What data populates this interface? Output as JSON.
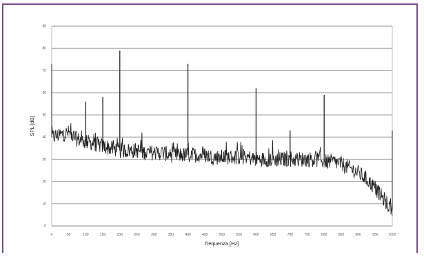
{
  "chart_data": {
    "type": "line",
    "title": "",
    "xlabel": "frequenza [Hz]",
    "ylabel": "SPL [dB]",
    "xlim": [
      0,
      1000
    ],
    "ylim": [
      0,
      90
    ],
    "xticks": [
      0,
      50,
      100,
      150,
      200,
      250,
      300,
      350,
      400,
      450,
      500,
      550,
      600,
      650,
      700,
      750,
      800,
      850,
      900,
      950,
      1000
    ],
    "yticks": [
      0,
      10,
      20,
      30,
      40,
      50,
      60,
      70,
      80,
      90
    ],
    "grid": "horizontal",
    "legend": "none",
    "line_color": "#222222",
    "grid_color": "#b0b0b0",
    "series": [
      {
        "x": [
          0,
          25,
          50,
          75,
          100,
          125,
          150,
          175,
          200,
          225,
          250,
          275,
          300,
          325,
          350,
          375,
          400,
          425,
          450,
          475,
          500,
          525,
          550,
          575,
          600,
          625,
          650,
          675,
          700,
          725,
          750,
          775,
          800,
          825,
          850,
          875,
          900,
          925,
          950,
          975,
          1000
        ],
        "values": [
          40,
          41,
          42,
          39,
          38,
          37,
          36,
          35,
          34,
          34,
          34,
          33,
          33,
          33,
          32,
          32,
          32,
          32,
          32,
          31,
          31,
          31,
          31,
          31,
          30,
          30,
          30,
          30,
          30,
          30,
          30,
          30,
          29,
          29,
          28,
          26,
          24,
          21,
          17,
          12,
          7
        ]
      }
    ],
    "peaks": [
      {
        "x": 0,
        "value": 73
      },
      {
        "x": 100,
        "value": 56
      },
      {
        "x": 150,
        "value": 58
      },
      {
        "x": 200,
        "value": 79
      },
      {
        "x": 400,
        "value": 73
      },
      {
        "x": 600,
        "value": 62
      },
      {
        "x": 700,
        "value": 43
      },
      {
        "x": 800,
        "value": 59
      },
      {
        "x": 1000,
        "value": 43
      }
    ]
  }
}
